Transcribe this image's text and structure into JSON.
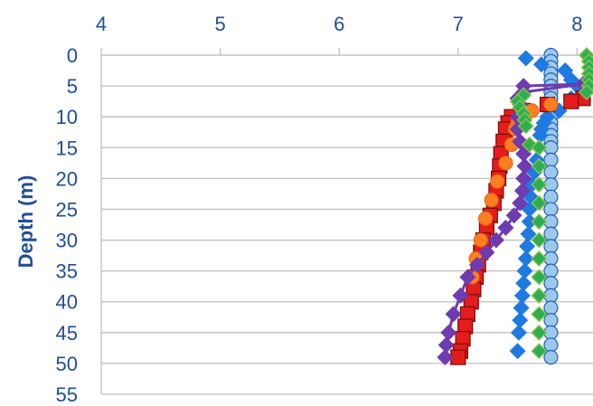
{
  "chart_data": {
    "type": "scatter",
    "title": "",
    "xlabel": "",
    "ylabel": "Depth (m)",
    "x_axis_position": "top",
    "y_reversed": true,
    "xlim": [
      4,
      8.1
    ],
    "ylim": [
      0,
      55
    ],
    "xticks": [
      4,
      5,
      6,
      7,
      8
    ],
    "yticks": [
      0,
      5,
      10,
      15,
      20,
      25,
      30,
      35,
      40,
      45,
      50,
      55
    ],
    "grid": true,
    "series": [
      {
        "marker": "circle",
        "color": "#9cc8ee",
        "stroke": "#1f5fb0",
        "line": false,
        "points": [
          [
            7.78,
            0
          ],
          [
            7.78,
            1
          ],
          [
            7.78,
            2
          ],
          [
            7.78,
            3
          ],
          [
            7.78,
            4
          ],
          [
            7.78,
            5
          ],
          [
            7.78,
            6
          ],
          [
            7.78,
            7
          ],
          [
            7.78,
            8
          ],
          [
            7.78,
            9
          ],
          [
            7.78,
            10
          ],
          [
            7.78,
            11
          ],
          [
            7.78,
            12
          ],
          [
            7.78,
            13
          ],
          [
            7.78,
            14
          ],
          [
            7.78,
            15
          ],
          [
            7.78,
            17
          ],
          [
            7.78,
            19
          ],
          [
            7.78,
            21
          ],
          [
            7.78,
            23
          ],
          [
            7.78,
            25
          ],
          [
            7.78,
            27
          ],
          [
            7.78,
            29
          ],
          [
            7.78,
            31
          ],
          [
            7.78,
            33
          ],
          [
            7.78,
            35
          ],
          [
            7.78,
            37
          ],
          [
            7.78,
            39
          ],
          [
            7.78,
            41
          ],
          [
            7.78,
            43
          ],
          [
            7.78,
            45
          ],
          [
            7.78,
            47
          ],
          [
            7.78,
            49
          ]
        ]
      },
      {
        "marker": "diamond",
        "color": "#1e7ae0",
        "stroke": "#1e7ae0",
        "line": false,
        "points": [
          [
            7.57,
            0.5
          ],
          [
            7.7,
            1.5
          ],
          [
            7.9,
            2.5
          ],
          [
            7.95,
            4
          ],
          [
            8.0,
            5
          ],
          [
            7.95,
            7
          ],
          [
            7.85,
            9
          ],
          [
            7.75,
            10
          ],
          [
            7.72,
            11
          ],
          [
            7.7,
            12
          ],
          [
            7.69,
            13
          ],
          [
            7.68,
            15
          ],
          [
            7.66,
            17
          ],
          [
            7.64,
            19
          ],
          [
            7.62,
            21
          ],
          [
            7.61,
            23
          ],
          [
            7.6,
            25
          ],
          [
            7.6,
            27
          ],
          [
            7.59,
            29
          ],
          [
            7.58,
            31
          ],
          [
            7.57,
            33
          ],
          [
            7.56,
            35
          ],
          [
            7.55,
            37
          ],
          [
            7.54,
            39
          ],
          [
            7.53,
            41
          ],
          [
            7.52,
            43
          ],
          [
            7.51,
            45
          ],
          [
            7.5,
            48
          ]
        ]
      },
      {
        "marker": "square",
        "color": "#e41c1c",
        "stroke": "#7a0a0a",
        "line": false,
        "points": [
          [
            8.05,
            7
          ],
          [
            7.95,
            7.5
          ],
          [
            7.75,
            8
          ],
          [
            7.55,
            9
          ],
          [
            7.45,
            10
          ],
          [
            7.42,
            11
          ],
          [
            7.4,
            12
          ],
          [
            7.38,
            14
          ],
          [
            7.36,
            16
          ],
          [
            7.35,
            18
          ],
          [
            7.34,
            20
          ],
          [
            7.32,
            22
          ],
          [
            7.3,
            24
          ],
          [
            7.27,
            26
          ],
          [
            7.24,
            28
          ],
          [
            7.21,
            30
          ],
          [
            7.19,
            32
          ],
          [
            7.17,
            34
          ],
          [
            7.15,
            36
          ],
          [
            7.13,
            38
          ],
          [
            7.11,
            40
          ],
          [
            7.08,
            42
          ],
          [
            7.06,
            44
          ],
          [
            7.04,
            46
          ],
          [
            7.02,
            48
          ],
          [
            7.0,
            49
          ]
        ]
      },
      {
        "marker": "circle",
        "color": "#ff7f1e",
        "stroke": "#e8641a",
        "line": false,
        "points": [
          [
            7.78,
            8
          ],
          [
            7.62,
            9
          ],
          [
            7.52,
            10
          ],
          [
            7.5,
            11
          ],
          [
            7.48,
            12
          ],
          [
            7.45,
            14.5
          ],
          [
            7.4,
            17.5
          ],
          [
            7.33,
            20.5
          ],
          [
            7.28,
            23.5
          ],
          [
            7.23,
            26.5
          ],
          [
            7.19,
            30
          ],
          [
            7.15,
            33
          ],
          [
            7.12,
            36
          ]
        ]
      },
      {
        "marker": "diamond",
        "color": "#6e3bb0",
        "stroke": "#6e3bb0",
        "line": true,
        "points": [
          [
            7.5,
            7
          ],
          [
            7.55,
            5
          ],
          [
            8.05,
            4.7
          ],
          [
            7.55,
            6
          ],
          [
            7.52,
            8
          ],
          [
            7.5,
            10
          ],
          [
            7.5,
            12
          ],
          [
            7.52,
            14
          ],
          [
            7.55,
            16
          ],
          [
            7.56,
            18
          ],
          [
            7.55,
            20
          ],
          [
            7.54,
            22
          ],
          [
            7.52,
            24
          ],
          [
            7.47,
            26
          ],
          [
            7.4,
            28
          ],
          [
            7.32,
            30
          ],
          [
            7.24,
            32
          ],
          [
            7.16,
            34
          ],
          [
            7.08,
            36
          ],
          [
            7.02,
            39
          ],
          [
            6.96,
            42
          ],
          [
            6.92,
            45
          ],
          [
            6.9,
            47
          ],
          [
            6.89,
            49
          ]
        ]
      },
      {
        "marker": "diamond",
        "color": "#2eae52",
        "stroke": "#8bc34a",
        "line": false,
        "points": [
          [
            8.08,
            0
          ],
          [
            8.1,
            1
          ],
          [
            8.1,
            2
          ],
          [
            8.1,
            3
          ],
          [
            8.1,
            4
          ],
          [
            8.1,
            5
          ],
          [
            8.08,
            6
          ],
          [
            7.55,
            6.5
          ],
          [
            7.5,
            7.5
          ],
          [
            7.52,
            8.5
          ],
          [
            7.55,
            9.5
          ],
          [
            7.56,
            10.5
          ],
          [
            7.57,
            11.5
          ],
          [
            7.6,
            14.5
          ],
          [
            7.68,
            15
          ],
          [
            7.68,
            18
          ],
          [
            7.68,
            21
          ],
          [
            7.68,
            24
          ],
          [
            7.68,
            27
          ],
          [
            7.68,
            30
          ],
          [
            7.68,
            33
          ],
          [
            7.68,
            36
          ],
          [
            7.68,
            39
          ],
          [
            7.68,
            42
          ],
          [
            7.68,
            45
          ],
          [
            7.68,
            48
          ]
        ]
      }
    ]
  }
}
